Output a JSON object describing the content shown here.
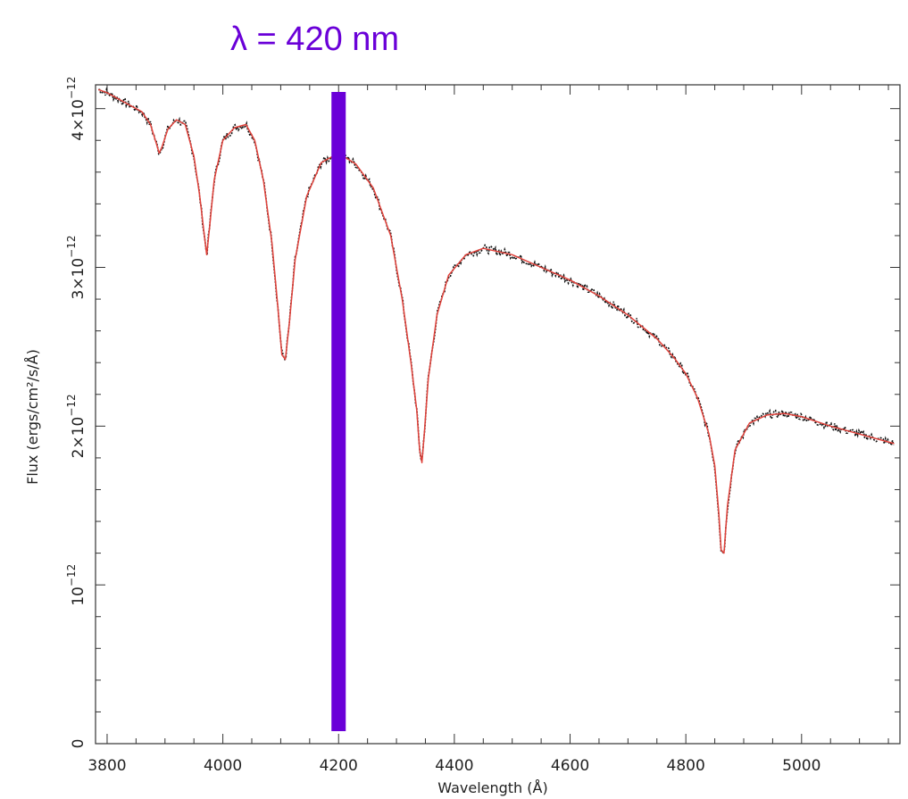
{
  "annotation": {
    "text": "λ = 420 nm",
    "marker_x": 4200,
    "color": "#6a00d8"
  },
  "chart_data": {
    "type": "line",
    "xlabel": "Wavelength (Å)",
    "ylabel": "Flux (ergs/cm²/s/Å)",
    "xlim": [
      3780,
      5170
    ],
    "ylim": [
      0,
      4.15e-12
    ],
    "x_ticks": [
      {
        "value": 3800,
        "label": "3800"
      },
      {
        "value": 4000,
        "label": "4000"
      },
      {
        "value": 4200,
        "label": "4200"
      },
      {
        "value": 4400,
        "label": "4400"
      },
      {
        "value": 4600,
        "label": "4600"
      },
      {
        "value": 4800,
        "label": "4800"
      },
      {
        "value": 5000,
        "label": "5000"
      }
    ],
    "y_ticks": [
      {
        "value": 0,
        "base": "0",
        "exp": ""
      },
      {
        "value": 1e-12,
        "base": "10",
        "exp": "−12"
      },
      {
        "value": 2e-12,
        "base": "2×10",
        "exp": "−12"
      },
      {
        "value": 3e-12,
        "base": "3×10",
        "exp": "−12"
      },
      {
        "value": 4e-12,
        "base": "4×10",
        "exp": "−12"
      }
    ],
    "grid": false,
    "series": [
      {
        "color": "#e0413a",
        "x": [
          3785,
          3800,
          3820,
          3840,
          3860,
          3875,
          3885,
          3890,
          3895,
          3905,
          3920,
          3935,
          3950,
          3960,
          3968,
          3972,
          3977,
          3985,
          4000,
          4020,
          4040,
          4055,
          4070,
          4085,
          4095,
          4102,
          4108,
          4115,
          4125,
          4145,
          4170,
          4200,
          4230,
          4260,
          4290,
          4310,
          4325,
          4335,
          4340,
          4344,
          4348,
          4355,
          4370,
          4390,
          4420,
          4450,
          4500,
          4550,
          4600,
          4650,
          4700,
          4750,
          4780,
          4800,
          4820,
          4840,
          4850,
          4857,
          4861,
          4866,
          4872,
          4885,
          4910,
          4940,
          4970,
          5000,
          5050,
          5100,
          5160
        ],
        "y": [
          4.12e-12,
          4.1e-12,
          4.06e-12,
          4.02e-12,
          3.98e-12,
          3.9e-12,
          3.78e-12,
          3.72e-12,
          3.76e-12,
          3.87e-12,
          3.93e-12,
          3.9e-12,
          3.7e-12,
          3.45e-12,
          3.2e-12,
          3.08e-12,
          3.25e-12,
          3.55e-12,
          3.8e-12,
          3.88e-12,
          3.9e-12,
          3.8e-12,
          3.55e-12,
          3.15e-12,
          2.75e-12,
          2.45e-12,
          2.42e-12,
          2.65e-12,
          3.05e-12,
          3.45e-12,
          3.66e-12,
          3.72e-12,
          3.65e-12,
          3.5e-12,
          3.2e-12,
          2.8e-12,
          2.4e-12,
          2.1e-12,
          1.85e-12,
          1.77e-12,
          1.95e-12,
          2.3e-12,
          2.7e-12,
          2.95e-12,
          3.08e-12,
          3.12e-12,
          3.08e-12,
          3e-12,
          2.92e-12,
          2.82e-12,
          2.7e-12,
          2.55e-12,
          2.43e-12,
          2.33e-12,
          2.18e-12,
          1.95e-12,
          1.75e-12,
          1.45e-12,
          1.22e-12,
          1.2e-12,
          1.5e-12,
          1.85e-12,
          2.02e-12,
          2.07e-12,
          2.08e-12,
          2.06e-12,
          2e-12,
          1.95e-12,
          1.89e-12
        ]
      }
    ]
  }
}
